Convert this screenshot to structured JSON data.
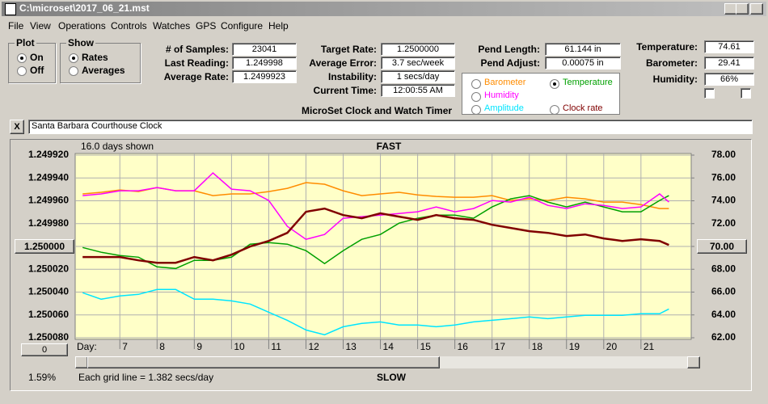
{
  "window": {
    "title": "C:\\microset\\2017_06_21.mst",
    "menu": [
      "File",
      "View",
      "Operations",
      "Controls",
      "Watches",
      "GPS",
      "Configure",
      "Help"
    ]
  },
  "plot_group": {
    "title": "Plot",
    "options": [
      "On",
      "Off"
    ],
    "selected": 0
  },
  "show_group": {
    "title": "Show",
    "options": [
      "Rates",
      "Averages"
    ],
    "selected": 0
  },
  "fields": [
    {
      "label": "# of Samples:",
      "value": "23041"
    },
    {
      "label": "Last Reading:",
      "value": "1.249998"
    },
    {
      "label": "Average Rate:",
      "value": "1.2499923"
    },
    {
      "label": "Target Rate:",
      "value": "1.2500000"
    },
    {
      "label": "Average Error:",
      "value": "3.7 sec/week"
    },
    {
      "label": "Instability:",
      "value": "1 secs/day"
    },
    {
      "label": "Current Time:",
      "value": "12:00:55 AM"
    },
    {
      "label": "Pend Length:",
      "value": "61.144 in"
    },
    {
      "label": "Pend Adjust:",
      "value": "0.00075 in"
    },
    {
      "label": "Temperature:",
      "value": "74.61"
    },
    {
      "label": "Barometer:",
      "value": "29.41"
    },
    {
      "label": "Humidity:",
      "value": "66%"
    }
  ],
  "app_title": "MicroSet Clock and Watch Timer",
  "clock_name": "Santa Barbara Courthouse Clock",
  "close_button": "X",
  "center_buttons": [
    "1.250000",
    "70.00"
  ],
  "scroll_button": "0",
  "percent": "1.59%",
  "grid_note": "Each grid line = 1.382 secs/day",
  "chart_data": {
    "type": "line",
    "subtitle": "16.0 days shown",
    "title": "FAST",
    "bottom_title": "SLOW",
    "xlabel": "Day:",
    "legend_selected": 1,
    "x": [
      6,
      6.5,
      7,
      7.5,
      8,
      8.5,
      9,
      9.5,
      10,
      10.5,
      11,
      11.5,
      12,
      12.5,
      13,
      13.5,
      14,
      14.5,
      15,
      15.5,
      16,
      16.5,
      17,
      17.5,
      18,
      18.5,
      19,
      19.5,
      20,
      20.5,
      21,
      21.5,
      21.75
    ],
    "xlim": [
      5.8,
      22.35
    ],
    "xticks": [
      7,
      8,
      9,
      10,
      11,
      12,
      13,
      14,
      15,
      16,
      17,
      18,
      19,
      20,
      21
    ],
    "ylim": [
      1.25008,
      1.24992
    ],
    "yticks": [
      {
        "value": 1.24992,
        "label": "1.249920"
      },
      {
        "value": 1.24994,
        "label": "1.249940"
      },
      {
        "value": 1.24996,
        "label": "1.249960"
      },
      {
        "value": 1.24998,
        "label": "1.249980"
      },
      {
        "value": 1.25,
        "label": "1.250000"
      },
      {
        "value": 1.25002,
        "label": "1.250020"
      },
      {
        "value": 1.25004,
        "label": "1.250040"
      },
      {
        "value": 1.25006,
        "label": "1.250060"
      },
      {
        "value": 1.25008,
        "label": "1.250080"
      }
    ],
    "y2lim": [
      62,
      78
    ],
    "y2ticks": [
      {
        "value": 78,
        "label": "78.00"
      },
      {
        "value": 76,
        "label": "76.00"
      },
      {
        "value": 74,
        "label": "74.00"
      },
      {
        "value": 72,
        "label": "72.00"
      },
      {
        "value": 70,
        "label": "70.00"
      },
      {
        "value": 68,
        "label": "68.00"
      },
      {
        "value": 66,
        "label": "66.00"
      },
      {
        "value": 64,
        "label": "64.00"
      },
      {
        "value": 62,
        "label": "62.00"
      }
    ],
    "grid": true,
    "series": [
      {
        "name": "Barometer",
        "color": "#ff8c00",
        "axis": "y2",
        "values": [
          74.6,
          74.74,
          74.95,
          74.81,
          75.16,
          74.88,
          74.88,
          74.45,
          74.6,
          74.6,
          74.81,
          75.09,
          75.59,
          75.45,
          74.88,
          74.45,
          74.6,
          74.74,
          74.52,
          74.38,
          74.31,
          74.31,
          74.45,
          74.03,
          74.17,
          74.03,
          74.31,
          74.17,
          73.89,
          73.89,
          73.67,
          73.32,
          73.32
        ]
      },
      {
        "name": "Temperature",
        "color": "#00a000",
        "axis": "y2",
        "values": [
          69.91,
          69.49,
          69.21,
          69.06,
          68.21,
          68.07,
          68.78,
          68.78,
          69.06,
          70.2,
          70.34,
          70.2,
          69.63,
          68.5,
          69.63,
          70.62,
          71.05,
          72.04,
          72.47,
          72.75,
          72.75,
          72.47,
          73.46,
          74.17,
          74.45,
          73.89,
          73.46,
          73.89,
          73.46,
          73.04,
          73.04,
          74.03,
          74.45
        ]
      },
      {
        "name": "Humidity",
        "color": "#ff00ff",
        "axis": "y2",
        "values": [
          74.45,
          74.6,
          74.88,
          74.88,
          75.16,
          74.88,
          74.88,
          76.44,
          75.02,
          74.88,
          74.03,
          71.76,
          70.62,
          71.05,
          72.47,
          72.61,
          72.75,
          72.89,
          73.04,
          73.46,
          73.04,
          73.32,
          74.03,
          73.89,
          74.31,
          73.6,
          73.32,
          73.74,
          73.6,
          73.32,
          73.46,
          74.6,
          73.89
        ]
      },
      {
        "name": "Amplitude",
        "color": "#00e5ff",
        "axis": "y2",
        "values": [
          65.94,
          65.38,
          65.66,
          65.8,
          66.23,
          66.23,
          65.38,
          65.38,
          65.23,
          64.95,
          64.24,
          63.53,
          62.68,
          62.26,
          62.96,
          63.25,
          63.39,
          63.11,
          63.11,
          62.96,
          63.11,
          63.39,
          63.53,
          63.67,
          63.82,
          63.67,
          63.82,
          63.96,
          63.96,
          63.96,
          64.1,
          64.1,
          64.52
        ]
      },
      {
        "name": "Clock rate",
        "color": "#800000",
        "axis": "y",
        "values": [
          1.2500093,
          1.2500093,
          1.2500093,
          1.2500122,
          1.2500143,
          1.2500143,
          1.2500093,
          1.2500122,
          1.2500072,
          1.2500001,
          1.2499952,
          1.2499881,
          1.2499696,
          1.2499668,
          1.2499725,
          1.2499753,
          1.249971,
          1.2499739,
          1.2499767,
          1.2499725,
          1.2499753,
          1.2499767,
          1.249981,
          1.2499838,
          1.2499866,
          1.2499881,
          1.2499909,
          1.2499895,
          1.249993,
          1.2499952,
          1.2499937,
          1.2499952,
          1.2499987
        ]
      }
    ]
  }
}
